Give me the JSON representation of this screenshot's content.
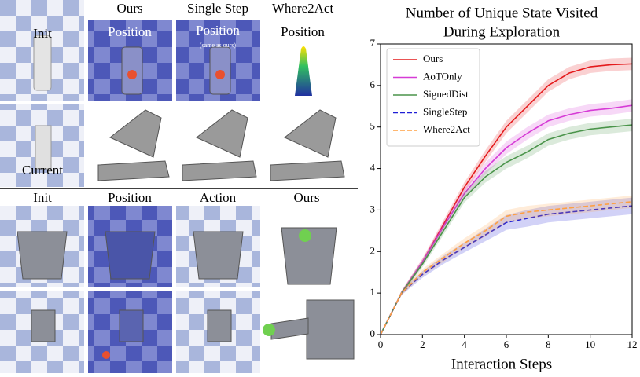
{
  "panels": {
    "top_headers": [
      "Ours",
      "Single Step",
      "Where2Act"
    ],
    "top_init": "Init",
    "top_current": "Current",
    "top_position": [
      "Position",
      "Position",
      "Position"
    ],
    "same_note": "(same as ours)",
    "bottom_headers": [
      "Init",
      "Position",
      "Action",
      "Ours"
    ]
  },
  "chart_data": {
    "type": "line",
    "title": [
      "Number of Unique State Visited",
      "During Exploration"
    ],
    "xlabel": "Interaction Steps",
    "x": [
      0,
      1,
      2,
      3,
      4,
      5,
      6,
      7,
      8,
      9,
      10,
      11,
      12
    ],
    "xlim": [
      0,
      12
    ],
    "xticks": [
      0,
      2,
      4,
      6,
      8,
      10,
      12
    ],
    "ylim": [
      0,
      7
    ],
    "yticks": [
      0,
      1,
      2,
      3,
      4,
      5,
      6,
      7
    ],
    "legend": "upper left",
    "series": [
      {
        "name": "Ours",
        "color": "#e41a1c",
        "dashed": false,
        "values": [
          0,
          1.0,
          1.75,
          2.65,
          3.55,
          4.3,
          5.0,
          5.5,
          6.0,
          6.3,
          6.45,
          6.5,
          6.52
        ],
        "errors": [
          0,
          0.05,
          0.08,
          0.1,
          0.12,
          0.14,
          0.15,
          0.15,
          0.15,
          0.15,
          0.15,
          0.15,
          0.15
        ]
      },
      {
        "name": "AoTOnly",
        "color": "#d63bd6",
        "dashed": false,
        "values": [
          0,
          1.0,
          1.75,
          2.6,
          3.4,
          4.0,
          4.5,
          4.85,
          5.15,
          5.3,
          5.4,
          5.45,
          5.52
        ],
        "errors": [
          0,
          0.05,
          0.08,
          0.1,
          0.12,
          0.14,
          0.15,
          0.15,
          0.15,
          0.15,
          0.15,
          0.15,
          0.15
        ]
      },
      {
        "name": "SignedDist",
        "color": "#4a944a",
        "dashed": false,
        "values": [
          0,
          1.0,
          1.7,
          2.5,
          3.3,
          3.8,
          4.15,
          4.4,
          4.7,
          4.85,
          4.95,
          5.0,
          5.05
        ],
        "errors": [
          0,
          0.05,
          0.08,
          0.1,
          0.12,
          0.14,
          0.15,
          0.15,
          0.15,
          0.15,
          0.15,
          0.15,
          0.15
        ]
      },
      {
        "name": "SingleStep",
        "color": "#1f1fd6",
        "dashed": true,
        "values": [
          0,
          1.0,
          1.45,
          1.8,
          2.1,
          2.4,
          2.7,
          2.8,
          2.9,
          2.95,
          3.0,
          3.05,
          3.1
        ],
        "errors": [
          0,
          0.05,
          0.08,
          0.1,
          0.12,
          0.15,
          0.18,
          0.2,
          0.2,
          0.2,
          0.2,
          0.2,
          0.2
        ]
      },
      {
        "name": "Where2Act",
        "color": "#ff9f40",
        "dashed": true,
        "values": [
          0,
          1.0,
          1.5,
          1.85,
          2.2,
          2.5,
          2.85,
          2.95,
          3.0,
          3.05,
          3.1,
          3.15,
          3.2
        ],
        "errors": [
          0,
          0.05,
          0.08,
          0.1,
          0.12,
          0.14,
          0.15,
          0.15,
          0.15,
          0.15,
          0.15,
          0.15,
          0.15
        ]
      }
    ]
  }
}
